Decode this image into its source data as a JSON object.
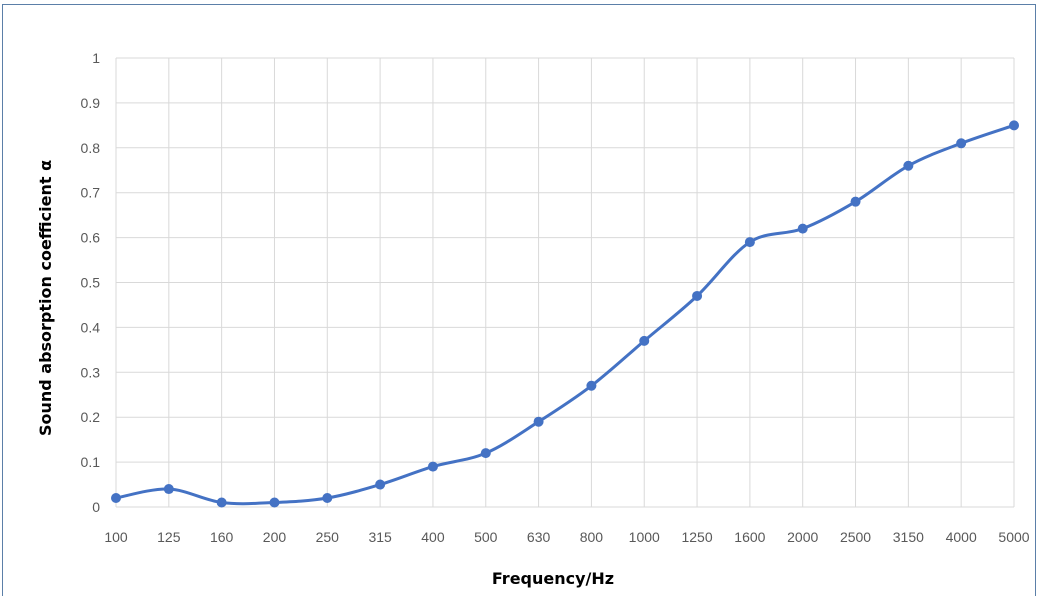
{
  "chart_data": {
    "type": "line",
    "title": "",
    "xlabel": "Frequency/Hz",
    "ylabel": "Sound absorption coefficient α",
    "categories": [
      "100",
      "125",
      "160",
      "200",
      "250",
      "315",
      "400",
      "500",
      "630",
      "800",
      "1000",
      "1250",
      "1600",
      "2000",
      "2500",
      "3150",
      "4000",
      "5000"
    ],
    "series": [
      {
        "values": [
          0.02,
          0.04,
          0.01,
          0.01,
          0.02,
          0.05,
          0.09,
          0.12,
          0.19,
          0.27,
          0.37,
          0.47,
          0.59,
          0.62,
          0.68,
          0.76,
          0.81,
          0.85
        ]
      }
    ],
    "ylim": [
      0,
      1
    ],
    "yticks": [
      "0",
      "0.1",
      "0.2",
      "0.3",
      "0.4",
      "0.5",
      "0.6",
      "0.7",
      "0.8",
      "0.9",
      "1"
    ],
    "grid": true,
    "legend": "none",
    "line_color": "#4472c4"
  }
}
